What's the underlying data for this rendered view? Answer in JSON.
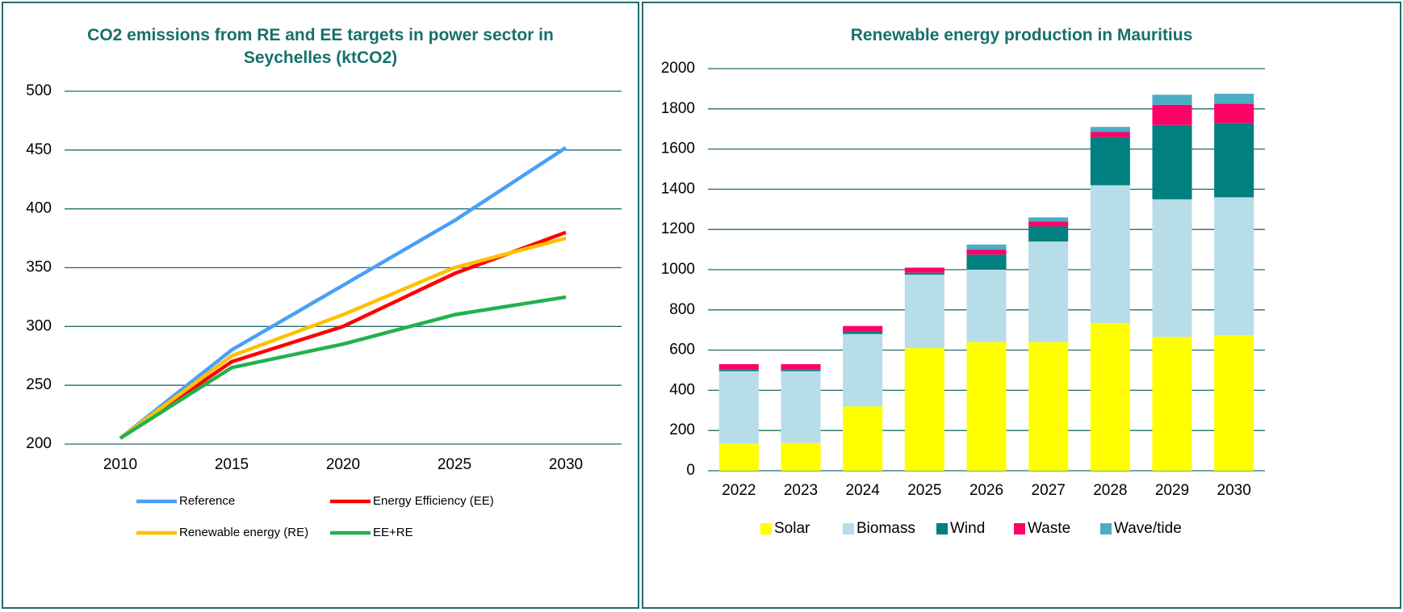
{
  "chart_data": [
    {
      "type": "line",
      "title": "CO2 emissions from RE and EE targets in power sector in Seychelles (ktCO2)",
      "categories": [
        "2010",
        "2015",
        "2020",
        "2025",
        "2030"
      ],
      "series": [
        {
          "name": "Reference",
          "color": "#4a9ff5",
          "values": [
            205,
            280,
            335,
            390,
            452
          ]
        },
        {
          "name": "Energy Efficiency (EE)",
          "color": "#ff0000",
          "values": [
            205,
            270,
            300,
            345,
            380
          ]
        },
        {
          "name": "Renewable energy (RE)",
          "color": "#ffc000",
          "values": [
            205,
            275,
            310,
            350,
            375
          ]
        },
        {
          "name": "EE+RE",
          "color": "#22b14c",
          "values": [
            205,
            265,
            285,
            310,
            325
          ]
        }
      ],
      "ylim": [
        200,
        500
      ],
      "yticks": [
        200,
        250,
        300,
        350,
        400,
        450,
        500
      ],
      "grid": true,
      "legend": "bottom"
    },
    {
      "type": "stacked_bar",
      "title": "Renewable energy production in Mauritius",
      "categories": [
        "2022",
        "2023",
        "2024",
        "2025",
        "2026",
        "2027",
        "2028",
        "2029",
        "2030"
      ],
      "series": [
        {
          "name": "Solar",
          "color": "#ffff00",
          "values": [
            135,
            138,
            320,
            610,
            640,
            640,
            735,
            665,
            675
          ]
        },
        {
          "name": "Biomass",
          "color": "#b7dde8",
          "values": [
            360,
            357,
            360,
            365,
            360,
            500,
            685,
            685,
            685
          ]
        },
        {
          "name": "Wind",
          "color": "#008080",
          "values": [
            10,
            10,
            15,
            10,
            75,
            75,
            240,
            370,
            370
          ]
        },
        {
          "name": "Waste",
          "color": "#ff0066",
          "values": [
            25,
            25,
            25,
            25,
            25,
            25,
            25,
            100,
            95
          ]
        },
        {
          "name": "Wave/tide",
          "color": "#4bacc6",
          "values": [
            0,
            0,
            0,
            0,
            25,
            20,
            25,
            50,
            50
          ]
        }
      ],
      "ylim": [
        0,
        2000
      ],
      "yticks": [
        0,
        200,
        400,
        600,
        800,
        1000,
        1200,
        1400,
        1600,
        1800,
        2000
      ],
      "grid": true,
      "legend": "bottom"
    }
  ]
}
